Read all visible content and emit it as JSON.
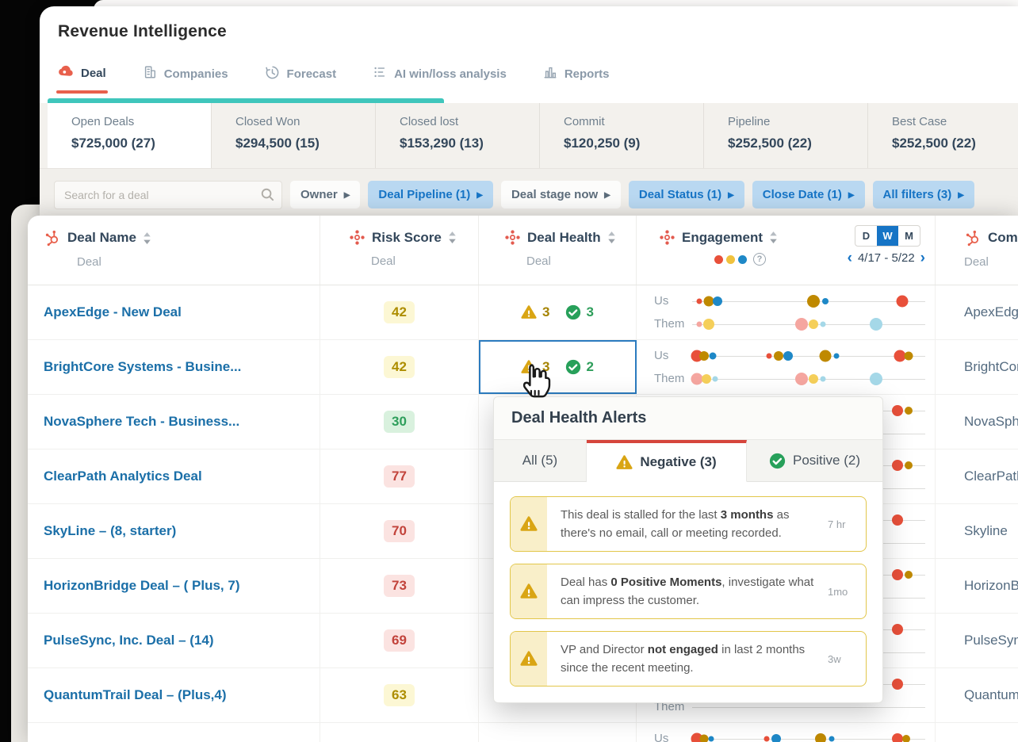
{
  "header": {
    "title": "Revenue Intelligence",
    "tabs": [
      {
        "label": "Deal",
        "icon": "deal-icon",
        "active": true
      },
      {
        "label": "Companies",
        "icon": "companies-icon",
        "active": false
      },
      {
        "label": "Forecast",
        "icon": "forecast-icon",
        "active": false
      },
      {
        "label": "AI win/loss analysis",
        "icon": "ai-analysis-icon",
        "active": false
      },
      {
        "label": "Reports",
        "icon": "reports-icon",
        "active": false
      }
    ]
  },
  "summary_cards": [
    {
      "label": "Open Deals",
      "value": "$725,000 (27)",
      "selected": true
    },
    {
      "label": "Closed Won",
      "value": "$294,500 (15)",
      "selected": false
    },
    {
      "label": "Closed lost",
      "value": "$153,290 (13)",
      "selected": false
    },
    {
      "label": "Commit",
      "value": "$120,250 (9)",
      "selected": false
    },
    {
      "label": "Pipeline",
      "value": "$252,500 (22)",
      "selected": false
    },
    {
      "label": "Best Case",
      "value": "$252,500 (22)",
      "selected": false
    }
  ],
  "filters": {
    "search_placeholder": "Search for a deal",
    "chips": [
      {
        "label": "Owner",
        "active": false
      },
      {
        "label": "Deal Pipeline (1)",
        "active": true
      },
      {
        "label": "Deal stage now",
        "active": false
      },
      {
        "label": "Deal Status (1)",
        "active": true
      },
      {
        "label": "Close Date (1)",
        "active": true
      },
      {
        "label": "All filters (3)",
        "active": true
      }
    ]
  },
  "table": {
    "columns": [
      {
        "label": "Deal Name",
        "sub": "Deal"
      },
      {
        "label": "Risk Score",
        "sub": "Deal"
      },
      {
        "label": "Deal Health",
        "sub": "Deal"
      },
      {
        "label": "Engagement",
        "sub": ""
      },
      {
        "label": "Comp",
        "sub": "Deal"
      }
    ],
    "engagement_header": {
      "toggle": [
        "D",
        "W",
        "M"
      ],
      "active_toggle": "W",
      "date_range": "4/17 - 5/22",
      "prev": "‹",
      "next": "›"
    },
    "engagement_labels": {
      "us": "Us",
      "them": "Them"
    },
    "rows": [
      {
        "name": "ApexEdge - New Deal",
        "risk": "42",
        "risk_level": "yellow",
        "health": {
          "neg": "3",
          "pos": "3"
        },
        "health_selected": false,
        "company": "ApexEdge",
        "us": [
          [
            3,
            7,
            "red"
          ],
          [
            7,
            13,
            "olive"
          ],
          [
            11,
            12,
            "blue"
          ],
          [
            52,
            16,
            "olive"
          ],
          [
            57,
            8,
            "blue"
          ],
          [
            90,
            15,
            "red"
          ]
        ],
        "them": [
          [
            3,
            7,
            "pink"
          ],
          [
            7,
            14,
            "yellow"
          ],
          [
            47,
            16,
            "pink"
          ],
          [
            52,
            12,
            "yellow"
          ],
          [
            56,
            7,
            "lblue"
          ],
          [
            79,
            16,
            "lblue"
          ]
        ]
      },
      {
        "name": "BrightCore Systems - Busine...",
        "risk": "42",
        "risk_level": "yellow",
        "health": {
          "neg": "3",
          "pos": "2"
        },
        "health_selected": true,
        "company": "BrightCor",
        "us": [
          [
            2,
            15,
            "red"
          ],
          [
            5,
            12,
            "olive"
          ],
          [
            9,
            9,
            "blue"
          ],
          [
            33,
            7,
            "red"
          ],
          [
            37,
            12,
            "olive"
          ],
          [
            41,
            12,
            "blue"
          ],
          [
            57,
            15,
            "olive"
          ],
          [
            62,
            7,
            "blue"
          ],
          [
            89,
            15,
            "red"
          ],
          [
            93,
            11,
            "olive"
          ]
        ],
        "them": [
          [
            2,
            15,
            "pink"
          ],
          [
            6,
            12,
            "yellow"
          ],
          [
            10,
            7,
            "lblue"
          ],
          [
            47,
            16,
            "pink"
          ],
          [
            52,
            12,
            "yellow"
          ],
          [
            56,
            7,
            "lblue"
          ],
          [
            79,
            16,
            "lblue"
          ]
        ]
      },
      {
        "name": "NovaSphere Tech - Business...",
        "risk": "30",
        "risk_level": "green",
        "health": null,
        "health_selected": false,
        "company": "NovaSph",
        "us": [
          [
            88,
            14,
            "red"
          ],
          [
            93,
            10,
            "olive"
          ]
        ],
        "them": []
      },
      {
        "name": "ClearPath Analytics Deal",
        "risk": "77",
        "risk_level": "red",
        "health": null,
        "health_selected": false,
        "company": "ClearPath",
        "us": [
          [
            88,
            14,
            "red"
          ],
          [
            93,
            10,
            "olive"
          ]
        ],
        "them": []
      },
      {
        "name": "SkyLine – (8, starter)",
        "risk": "70",
        "risk_level": "red",
        "health": null,
        "health_selected": false,
        "company": "Skyline",
        "us": [
          [
            88,
            14,
            "red"
          ]
        ],
        "them": []
      },
      {
        "name": "HorizonBridge Deal – ( Plus, 7)",
        "risk": "73",
        "risk_level": "red",
        "health": null,
        "health_selected": false,
        "company": "HorizonB",
        "us": [
          [
            88,
            14,
            "red"
          ],
          [
            93,
            10,
            "olive"
          ]
        ],
        "them": []
      },
      {
        "name": "PulseSync, Inc. Deal – (14)",
        "risk": "69",
        "risk_level": "red",
        "health": null,
        "health_selected": false,
        "company": "PulseSync",
        "us": [
          [
            88,
            14,
            "red"
          ]
        ],
        "them": []
      },
      {
        "name": "QuantumTrail Deal – (Plus,4)",
        "risk": "63",
        "risk_level": "yellow",
        "health": null,
        "health_selected": false,
        "company": "Quantum",
        "us": [
          [
            88,
            14,
            "red"
          ]
        ],
        "them": []
      },
      {
        "name": "",
        "risk": "",
        "risk_level": "red",
        "health": {
          "neg": "",
          "pos": ""
        },
        "health_selected": false,
        "company": "",
        "us": [
          [
            2,
            15,
            "red"
          ],
          [
            5,
            11,
            "olive"
          ],
          [
            8,
            7,
            "blue"
          ],
          [
            32,
            7,
            "red"
          ],
          [
            36,
            12,
            "blue"
          ],
          [
            55,
            14,
            "olive"
          ],
          [
            60,
            7,
            "blue"
          ],
          [
            88,
            14,
            "red"
          ],
          [
            92,
            10,
            "olive"
          ]
        ],
        "them": []
      }
    ]
  },
  "popup": {
    "title": "Deal Health Alerts",
    "tabs": [
      {
        "label": "All (5)",
        "icon": null,
        "active": false
      },
      {
        "label": "Negative (3)",
        "icon": "warning-icon",
        "active": true
      },
      {
        "label": "Positive (2)",
        "icon": "check-icon",
        "active": false
      }
    ],
    "alerts": [
      {
        "parts": [
          "This deal is stalled for the last ",
          "3 months",
          " as there's no email, call or meeting recorded."
        ],
        "time": "7 hr"
      },
      {
        "parts": [
          "Deal has ",
          "0 Positive Moments",
          ", investigate what can impress the customer."
        ],
        "time": "1mo"
      },
      {
        "parts": [
          "VP and Director ",
          "not engaged",
          " in last 2 months since the recent meeting."
        ],
        "time": "3w"
      }
    ]
  },
  "colors": {
    "accent_blue": "#1674c5",
    "teal": "#3fc6bc",
    "brand_red": "#e8604c",
    "warning": "#d9a514",
    "positive": "#27a05a",
    "legend": [
      "#e8503a",
      "#f0c23e",
      "#1e88c7"
    ],
    "dots": {
      "red": "#e8503a",
      "olive": "#bf8900",
      "blue": "#1e88c7",
      "pink": "#f5a6a0",
      "yellow": "#f5cf5a",
      "lblue": "#a5d8e8"
    }
  }
}
